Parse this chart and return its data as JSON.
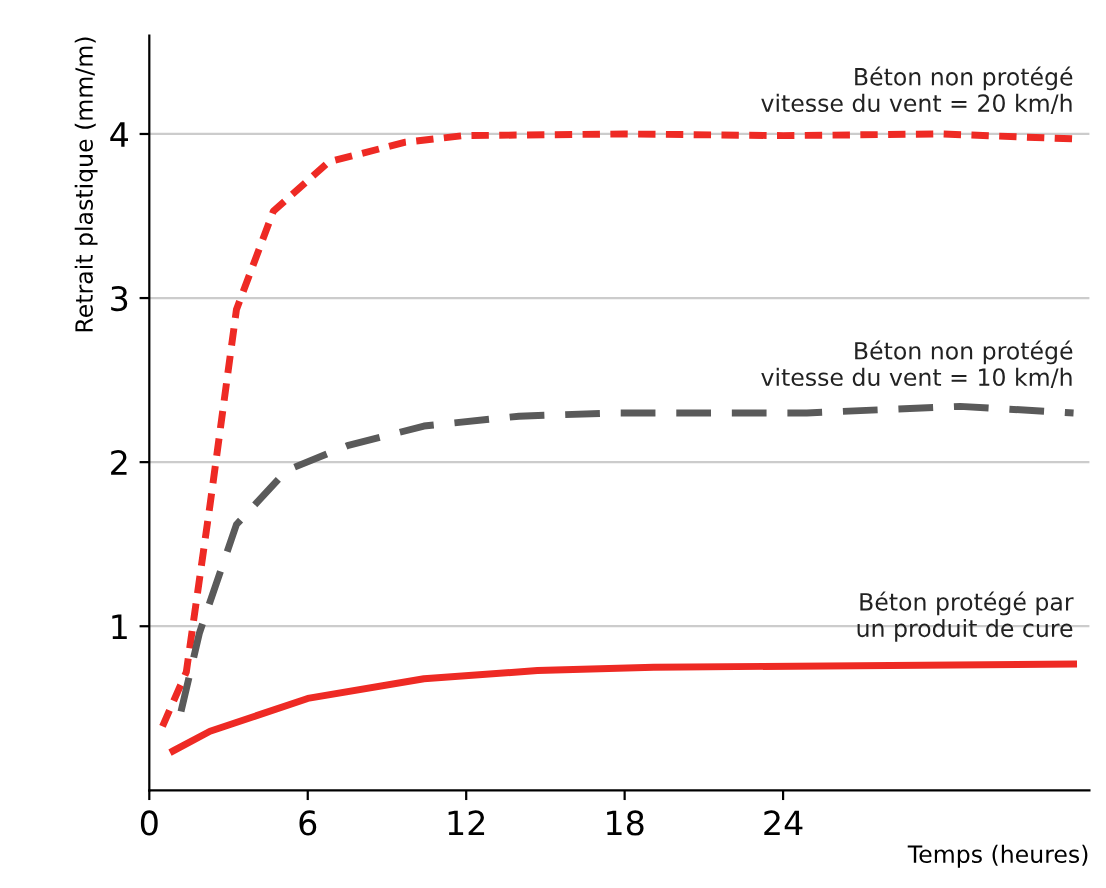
{
  "chart_data": {
    "type": "line",
    "xlabel": "Temps (heures)",
    "ylabel": "Retrait plastique (mm/m)",
    "xlim": [
      0,
      35.6
    ],
    "ylim": [
      0,
      4.6
    ],
    "xticks": [
      0,
      6,
      12,
      18,
      24
    ],
    "yticks": [
      1,
      2,
      3,
      4
    ],
    "grid": "y",
    "series": [
      {
        "name": "Béton non protégé\nvitesse du vent = 20 km/h",
        "color": "#ee2a24",
        "line_style": "dotted",
        "x": [
          0.5,
          1.4,
          2.3,
          3.3,
          4.7,
          6.8,
          9.7,
          11.9,
          18,
          24,
          30,
          35
        ],
        "values": [
          0.39,
          0.72,
          1.74,
          2.93,
          3.53,
          3.83,
          3.95,
          3.99,
          4.0,
          3.99,
          4.0,
          3.97
        ]
      },
      {
        "name": "Béton non protégé\nvitesse du vent = 10 km/h",
        "color": "#5a5a5a",
        "line_style": "dashed",
        "x": [
          1.2,
          1.9,
          3.3,
          5.2,
          7.5,
          10.4,
          14,
          17.6,
          24.9,
          30.7,
          35
        ],
        "values": [
          0.48,
          0.96,
          1.62,
          1.95,
          2.1,
          2.22,
          2.28,
          2.3,
          2.3,
          2.34,
          2.3
        ]
      },
      {
        "name": "Béton protégé par\nun produit de cure",
        "color": "#ee2a24",
        "line_style": "solid",
        "x": [
          0.9,
          2.3,
          6,
          10.4,
          14.7,
          19.1,
          35
        ],
        "values": [
          0.24,
          0.36,
          0.56,
          0.68,
          0.73,
          0.75,
          0.77
        ]
      }
    ]
  }
}
